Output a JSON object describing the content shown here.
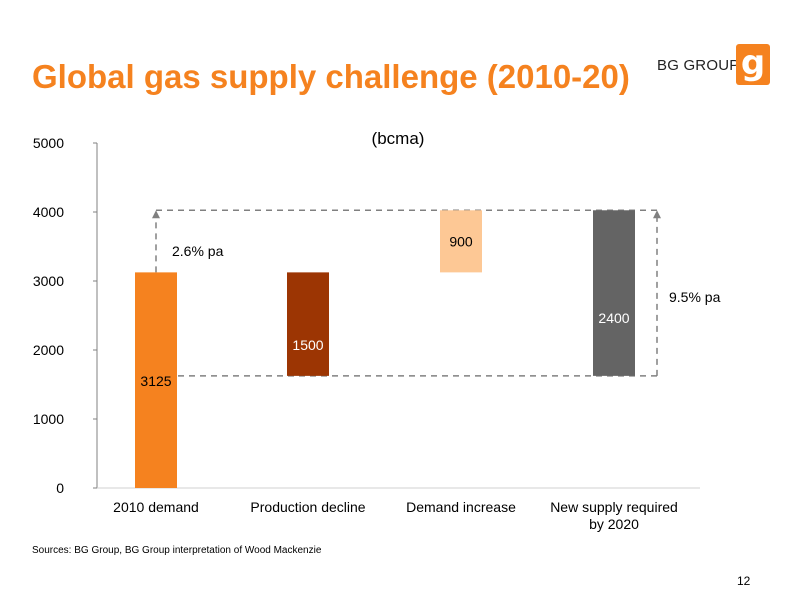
{
  "slide": {
    "title": "Global gas supply challenge (2010-20)",
    "footnote": "Sources: BG Group, BG Group interpretation of Wood Mackenzie",
    "page_number": "12"
  },
  "brand": {
    "name": "BG GROUP",
    "logo_letter": "g",
    "color": "#f5821f"
  },
  "chart_data": {
    "type": "bar",
    "subtype": "waterfall",
    "unit_label": "(bcma)",
    "ylim": [
      0,
      5000
    ],
    "yticks": [
      0,
      1000,
      2000,
      3000,
      4000,
      5000
    ],
    "grid": false,
    "categories": [
      "2010 demand",
      "Production decline",
      "Demand increase",
      "New supply required by 2020"
    ],
    "category_lines": [
      [
        "2010 demand"
      ],
      [
        "Production decline"
      ],
      [
        "Demand increase"
      ],
      [
        "New supply required",
        "by 2020"
      ]
    ],
    "bars": [
      {
        "label": "3125",
        "bottom": 0,
        "top": 3125,
        "color": "#f5821f",
        "label_color": "#000000"
      },
      {
        "label": "1500",
        "bottom": 1625,
        "top": 3125,
        "color": "#9c3503",
        "label_color": "#ffffff"
      },
      {
        "label": "900",
        "bottom": 3125,
        "top": 4025,
        "color": "#fdc895",
        "label_color": "#000000"
      },
      {
        "label": "2400",
        "bottom": 1625,
        "top": 4025,
        "color": "#646464",
        "label_color": "#ffffff"
      }
    ],
    "reference_levels": {
      "low": 1625,
      "high": 4025
    },
    "annotations": {
      "demand_growth": "2.6% pa",
      "supply_growth": "9.5% pa"
    }
  }
}
